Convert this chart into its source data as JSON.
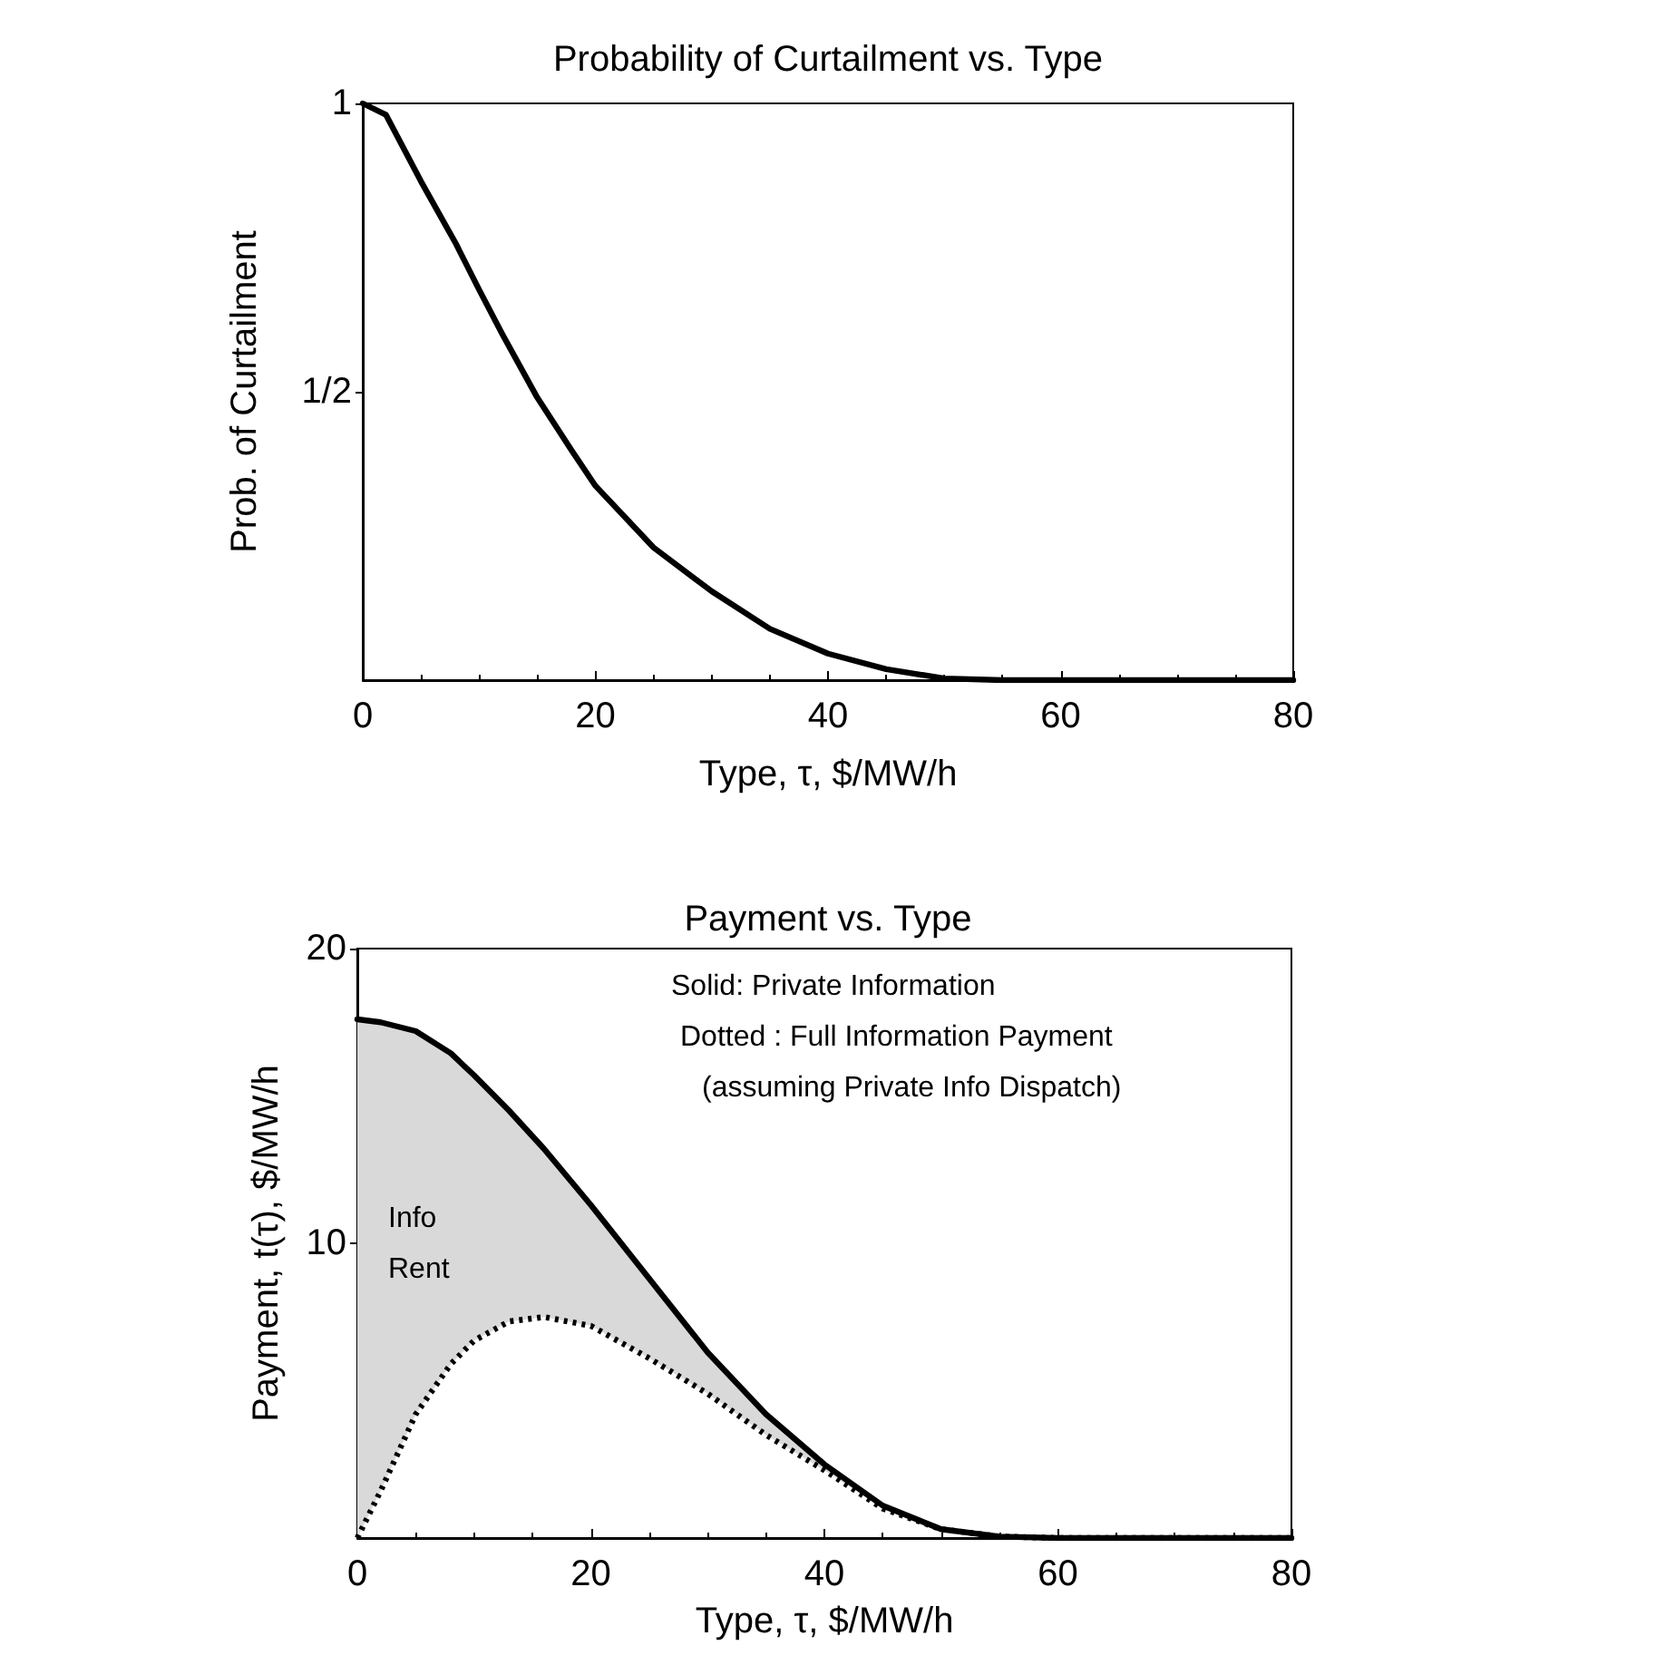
{
  "chart_data": [
    {
      "type": "line",
      "title": "Probability of Curtailment vs. Type",
      "xlabel": "Type, τ, $/MW/h",
      "ylabel": "Prob. of Curtailment",
      "xlim": [
        0,
        80
      ],
      "xticks": [
        0,
        20,
        40,
        60,
        80
      ],
      "ylim": [
        0,
        1
      ],
      "yticks": [
        {
          "value": 0.5,
          "label": "1/2"
        },
        1
      ],
      "grid": false,
      "marker": "none",
      "series": [
        {
          "color": "#000000",
          "line_style": "solid",
          "x": [
            0,
            2,
            5,
            8,
            10,
            12,
            15,
            18,
            20,
            25,
            30,
            35,
            40,
            45,
            50,
            55,
            60,
            70,
            80
          ],
          "values": [
            1.0,
            0.98,
            0.865,
            0.757,
            0.677,
            0.6,
            0.49,
            0.397,
            0.337,
            0.23,
            0.154,
            0.089,
            0.046,
            0.019,
            0.003,
            0,
            0,
            0,
            0
          ]
        }
      ]
    },
    {
      "type": "line",
      "title": "Payment vs. Type",
      "xlabel": "Type, τ, $/MW/h",
      "ylabel": "Payment, t(τ), $/MW/h",
      "xlim": [
        0,
        80
      ],
      "xticks": [
        0,
        20,
        40,
        60,
        80
      ],
      "ylim": [
        0,
        20
      ],
      "yticks": [
        10,
        20
      ],
      "grid": false,
      "marker": "none",
      "annotations": [
        "Solid: Private Information",
        "Dotted : Full Information Payment",
        "(assuming Private Info Dispatch)",
        "Info Rent"
      ],
      "series": [
        {
          "color": "#000000",
          "line_style": "solid",
          "x": [
            0,
            2,
            5,
            8,
            10,
            13,
            16,
            20,
            25,
            30,
            35,
            40,
            45,
            50,
            55,
            60,
            70,
            80
          ],
          "values": [
            17.6,
            17.5,
            17.2,
            16.45,
            15.7,
            14.5,
            13.2,
            11.3,
            8.8,
            6.3,
            4.2,
            2.5,
            1.1,
            0.3,
            0.05,
            0,
            0,
            0
          ],
          "lower": [
            0,
            1.6,
            4.2,
            5.9,
            6.7,
            7.35,
            7.5,
            7.2,
            6.1,
            4.9,
            3.5,
            2.3,
            1.0,
            0.3,
            0.05,
            0,
            0,
            0
          ],
          "upper": [
            17.6,
            17.5,
            17.2,
            16.45,
            15.7,
            14.5,
            13.2,
            11.3,
            8.8,
            6.3,
            4.2,
            2.5,
            1.1,
            0.3,
            0.05,
            0,
            0,
            0
          ]
        },
        {
          "color": "#000000",
          "line_style": "dotted",
          "x": [
            0,
            2,
            5,
            8,
            10,
            13,
            16,
            20,
            25,
            30,
            35,
            40,
            45,
            50,
            55,
            60,
            70,
            80
          ],
          "values": [
            0,
            1.6,
            4.2,
            5.9,
            6.7,
            7.35,
            7.5,
            7.2,
            6.1,
            4.9,
            3.5,
            2.3,
            1.0,
            0.3,
            0.05,
            0,
            0,
            0
          ]
        }
      ]
    }
  ]
}
